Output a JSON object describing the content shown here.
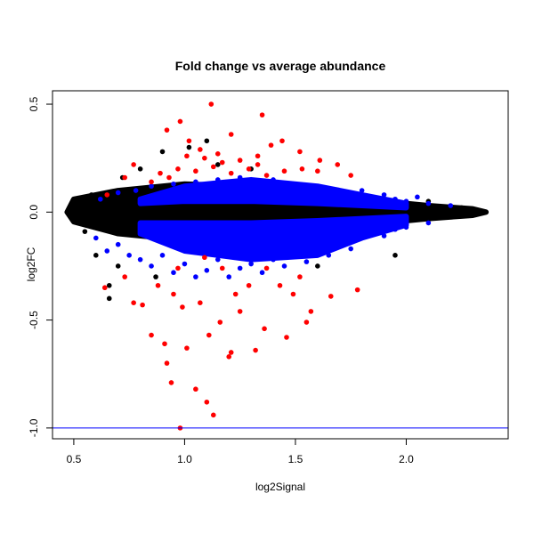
{
  "chart_data": {
    "type": "scatter",
    "title": "Fold change vs average abundance",
    "xlabel": "log2Signal",
    "ylabel": "log2FC",
    "xlim": [
      0.404,
      2.46
    ],
    "ylim": [
      -1.05,
      0.562
    ],
    "xticks": [
      0.5,
      1.0,
      1.5,
      2.0
    ],
    "xtick_labels": [
      "0.5",
      "1.0",
      "1.5",
      "2.0"
    ],
    "yticks": [
      0.5,
      0.0,
      -0.5,
      -1.0
    ],
    "ytick_labels": [
      "0.5",
      "0.0",
      "-0.5",
      "-1.0"
    ],
    "grid": false,
    "hline": {
      "y": -1.0,
      "color": "#0000ff"
    },
    "series": [
      {
        "color": "#000000",
        "dense_region": {
          "x": [
            0.47,
            0.5,
            0.7,
            1.0,
            1.3,
            1.6,
            1.9,
            2.1,
            2.3,
            2.36
          ],
          "upper": [
            0.0,
            0.06,
            0.1,
            0.13,
            0.12,
            0.08,
            0.05,
            0.03,
            0.015,
            0.0
          ],
          "lower": [
            0.0,
            -0.045,
            -0.1,
            -0.13,
            -0.12,
            -0.08,
            -0.05,
            -0.03,
            -0.015,
            0.0
          ]
        },
        "points": [
          [
            0.5,
            -0.03
          ],
          [
            0.55,
            -0.09
          ],
          [
            0.66,
            -0.34
          ],
          [
            0.66,
            -0.4
          ],
          [
            0.6,
            -0.2
          ],
          [
            0.7,
            -0.25
          ],
          [
            0.72,
            0.16
          ],
          [
            0.8,
            0.2
          ],
          [
            0.9,
            0.28
          ],
          [
            1.02,
            0.3
          ],
          [
            1.1,
            0.33
          ],
          [
            1.15,
            0.22
          ],
          [
            0.87,
            -0.3
          ],
          [
            1.3,
            0.2
          ],
          [
            1.6,
            -0.25
          ],
          [
            1.95,
            -0.2
          ],
          [
            2.1,
            0.05
          ],
          [
            2.3,
            0.0
          ],
          [
            2.35,
            0.0
          ],
          [
            2.2,
            -0.02
          ],
          [
            0.58,
            0.08
          ],
          [
            2.25,
            0.02
          ],
          [
            2.28,
            -0.01
          ]
        ]
      },
      {
        "color": "#0000ff",
        "dense_region": [
          {
            "x": [
              0.8,
              1.0,
              1.3,
              1.6,
              1.8,
              2.0
            ],
            "upper": [
              0.06,
              0.12,
              0.15,
              0.12,
              0.08,
              0.04
            ],
            "lower": [
              0.04,
              0.05,
              0.05,
              0.04,
              0.03,
              0.02
            ]
          },
          {
            "x": [
              0.8,
              1.0,
              1.3,
              1.6,
              1.8,
              2.0
            ],
            "upper": [
              -0.05,
              -0.05,
              -0.05,
              -0.04,
              -0.03,
              -0.02
            ],
            "lower": [
              -0.1,
              -0.18,
              -0.22,
              -0.2,
              -0.12,
              -0.06
            ]
          }
        ],
        "points": [
          [
            0.62,
            0.06
          ],
          [
            0.7,
            0.09
          ],
          [
            0.78,
            0.1
          ],
          [
            0.85,
            0.12
          ],
          [
            0.9,
            0.08
          ],
          [
            0.95,
            0.13
          ],
          [
            1.0,
            0.11
          ],
          [
            1.05,
            0.14
          ],
          [
            1.1,
            0.12
          ],
          [
            1.15,
            0.15
          ],
          [
            1.2,
            0.13
          ],
          [
            1.25,
            0.16
          ],
          [
            1.3,
            0.14
          ],
          [
            1.35,
            0.12
          ],
          [
            1.4,
            0.15
          ],
          [
            1.45,
            0.13
          ],
          [
            1.5,
            0.11
          ],
          [
            1.55,
            0.12
          ],
          [
            1.6,
            0.1
          ],
          [
            1.65,
            0.11
          ],
          [
            1.7,
            0.09
          ],
          [
            1.75,
            0.08
          ],
          [
            1.8,
            0.1
          ],
          [
            1.85,
            0.07
          ],
          [
            1.9,
            0.08
          ],
          [
            1.95,
            0.06
          ],
          [
            2.0,
            0.05
          ],
          [
            2.05,
            0.07
          ],
          [
            2.1,
            0.04
          ],
          [
            2.2,
            0.03
          ],
          [
            0.6,
            -0.12
          ],
          [
            0.65,
            -0.18
          ],
          [
            0.7,
            -0.15
          ],
          [
            0.75,
            -0.2
          ],
          [
            0.8,
            -0.22
          ],
          [
            0.85,
            -0.25
          ],
          [
            0.9,
            -0.2
          ],
          [
            0.95,
            -0.28
          ],
          [
            1.0,
            -0.24
          ],
          [
            1.05,
            -0.3
          ],
          [
            1.1,
            -0.27
          ],
          [
            1.15,
            -0.22
          ],
          [
            1.2,
            -0.3
          ],
          [
            1.25,
            -0.26
          ],
          [
            1.3,
            -0.24
          ],
          [
            1.35,
            -0.28
          ],
          [
            1.4,
            -0.22
          ],
          [
            1.45,
            -0.25
          ],
          [
            1.5,
            -0.2
          ],
          [
            1.55,
            -0.23
          ],
          [
            1.6,
            -0.18
          ],
          [
            1.65,
            -0.2
          ],
          [
            1.7,
            -0.15
          ],
          [
            1.75,
            -0.17
          ],
          [
            1.8,
            -0.12
          ],
          [
            1.85,
            -0.1
          ],
          [
            1.9,
            -0.11
          ],
          [
            1.95,
            -0.08
          ],
          [
            2.0,
            -0.07
          ],
          [
            2.1,
            -0.05
          ]
        ]
      },
      {
        "color": "#ff0000",
        "points": [
          [
            1.12,
            0.5
          ],
          [
            1.35,
            0.45
          ],
          [
            0.98,
            0.42
          ],
          [
            0.92,
            0.38
          ],
          [
            1.21,
            0.36
          ],
          [
            1.44,
            0.33
          ],
          [
            1.52,
            0.28
          ],
          [
            1.39,
            0.31
          ],
          [
            1.02,
            0.33
          ],
          [
            0.77,
            0.22
          ],
          [
            1.25,
            0.24
          ],
          [
            1.6,
            0.19
          ],
          [
            1.75,
            0.17
          ],
          [
            0.89,
            0.18
          ],
          [
            0.97,
            0.2
          ],
          [
            1.05,
            0.19
          ],
          [
            1.13,
            0.21
          ],
          [
            1.21,
            0.18
          ],
          [
            1.29,
            0.2
          ],
          [
            1.37,
            0.17
          ],
          [
            1.45,
            0.19
          ],
          [
            1.01,
            0.26
          ],
          [
            1.09,
            0.25
          ],
          [
            1.17,
            0.23
          ],
          [
            1.33,
            0.22
          ],
          [
            1.53,
            0.2
          ],
          [
            0.85,
            0.14
          ],
          [
            0.93,
            0.16
          ],
          [
            1.07,
            0.29
          ],
          [
            1.15,
            0.27
          ],
          [
            1.33,
            0.26
          ],
          [
            1.61,
            0.24
          ],
          [
            1.69,
            0.22
          ],
          [
            0.73,
            0.16
          ],
          [
            0.65,
            0.08
          ],
          [
            0.81,
            -0.43
          ],
          [
            0.99,
            -0.44
          ],
          [
            0.92,
            -0.7
          ],
          [
            0.94,
            -0.79
          ],
          [
            1.05,
            -0.82
          ],
          [
            1.13,
            -0.94
          ],
          [
            1.1,
            -0.88
          ],
          [
            0.98,
            -1.0
          ],
          [
            1.2,
            -0.67
          ],
          [
            1.21,
            -0.65
          ],
          [
            1.01,
            -0.63
          ],
          [
            0.91,
            -0.61
          ],
          [
            0.85,
            -0.57
          ],
          [
            1.32,
            -0.64
          ],
          [
            1.36,
            -0.54
          ],
          [
            1.46,
            -0.58
          ],
          [
            1.57,
            -0.46
          ],
          [
            1.55,
            -0.51
          ],
          [
            1.66,
            -0.39
          ],
          [
            1.78,
            -0.36
          ],
          [
            1.11,
            -0.57
          ],
          [
            1.16,
            -0.51
          ],
          [
            1.25,
            -0.46
          ],
          [
            1.07,
            -0.42
          ],
          [
            1.29,
            -0.34
          ],
          [
            1.43,
            -0.34
          ],
          [
            1.52,
            -0.3
          ],
          [
            0.88,
            -0.34
          ],
          [
            0.73,
            -0.3
          ],
          [
            0.64,
            -0.35
          ],
          [
            1.17,
            -0.26
          ],
          [
            0.97,
            -0.26
          ],
          [
            1.09,
            -0.21
          ],
          [
            1.37,
            -0.26
          ],
          [
            1.23,
            -0.38
          ],
          [
            1.49,
            -0.38
          ],
          [
            0.77,
            -0.42
          ],
          [
            0.95,
            -0.38
          ]
        ]
      }
    ]
  }
}
